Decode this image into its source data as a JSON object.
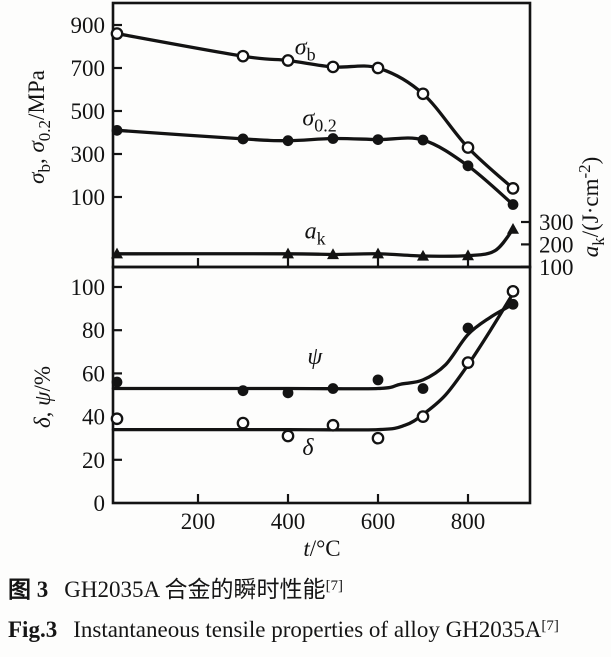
{
  "figure": {
    "captions": {
      "zh": {
        "label": "图 3",
        "text": "GH2035A 合金的瞬时性能",
        "ref": "[7]"
      },
      "en": {
        "label": "Fig.3",
        "text": "Instantaneous tensile properties of alloy GH2035A",
        "ref": "[7]"
      }
    }
  },
  "chart_data": {
    "type": "line",
    "title": "",
    "x_axis": {
      "label": "t/°C",
      "label_segments": [
        {
          "text": "t",
          "italic": true
        },
        {
          "text": "/°C"
        }
      ],
      "ticks": [
        200,
        400,
        600,
        800
      ],
      "range": [
        10,
        938
      ]
    },
    "panels": [
      {
        "id": "strength",
        "left_axis": {
          "label": "σb, σ0.2/MPa",
          "label_segments": [
            {
              "text": "σ",
              "italic": true
            },
            {
              "text": "b",
              "sub": true
            },
            {
              "text": ", "
            },
            {
              "text": "σ",
              "italic": true
            },
            {
              "text": "0.2",
              "sub": true
            },
            {
              "text": "/MPa"
            }
          ],
          "ticks": [
            900,
            700,
            500,
            300,
            100
          ],
          "range": [
            0,
            1000
          ]
        },
        "right_axis": {
          "label": "ak/(J·cm-2)",
          "label_segments": [
            {
              "text": "a",
              "italic": true
            },
            {
              "text": "k",
              "sub": true
            },
            {
              "text": "/(J·cm"
            },
            {
              "text": "-2",
              "sup": true
            },
            {
              "text": ")"
            }
          ],
          "ticks": [
            300,
            200,
            100
          ],
          "range": [
            0,
            400
          ]
        },
        "series": [
          {
            "id": "sigma-b",
            "name": "σb",
            "axis": "left",
            "marker": "circle-open",
            "label_segments": [
              {
                "text": "σ",
                "italic": true
              },
              {
                "text": "b",
                "sub": true
              }
            ],
            "label_pos": [
              415,
              800
            ],
            "points": [
              [
                20,
                860
              ],
              [
                300,
                755
              ],
              [
                400,
                735
              ],
              [
                500,
                705
              ],
              [
                600,
                700
              ],
              [
                700,
                580
              ],
              [
                800,
                330
              ],
              [
                900,
                140
              ]
            ]
          },
          {
            "id": "sigma-0-2",
            "name": "σ0.2",
            "axis": "left",
            "marker": "circle-filled",
            "label_segments": [
              {
                "text": "σ",
                "italic": true
              },
              {
                "text": "0.2",
                "sub": true
              }
            ],
            "label_pos": [
              432,
              470
            ],
            "points": [
              [
                20,
                410
              ],
              [
                300,
                370
              ],
              [
                400,
                362
              ],
              [
                500,
                372
              ],
              [
                600,
                367
              ],
              [
                700,
                365
              ],
              [
                800,
                245
              ],
              [
                900,
                65
              ]
            ]
          },
          {
            "id": "a-k",
            "name": "ak",
            "axis": "right",
            "marker": "triangle-filled",
            "label_segments": [
              {
                "text": "a",
                "italic": true
              },
              {
                "text": "k",
                "sub": true
              }
            ],
            "label_pos": [
              437,
              262
            ],
            "points": [
              [
                20,
                158
              ],
              [
                400,
                158
              ],
              [
                500,
                155
              ],
              [
                600,
                158
              ],
              [
                700,
                148
              ],
              [
                800,
                150
              ],
              [
                900,
                268
              ]
            ],
            "curve": [
              [
                20,
                158
              ],
              [
                400,
                158
              ],
              [
                500,
                155
              ],
              [
                600,
                158
              ],
              [
                700,
                148
              ],
              [
                800,
                150
              ],
              [
                860,
                172
              ],
              [
                900,
                268
              ]
            ]
          }
        ]
      },
      {
        "id": "ductility",
        "left_axis": {
          "label": "δ, ψ/%",
          "label_segments": [
            {
              "text": "δ",
              "italic": true
            },
            {
              "text": ", "
            },
            {
              "text": "ψ",
              "italic": true
            },
            {
              "text": "/%"
            }
          ],
          "ticks": [
            100,
            80,
            60,
            40,
            20,
            0
          ],
          "range": [
            0,
            109
          ]
        },
        "series": [
          {
            "id": "psi",
            "name": "ψ",
            "axis": "left",
            "marker": "circle-filled",
            "label_segments": [
              {
                "text": "ψ",
                "italic": true
              }
            ],
            "label_pos": [
              443,
              68
            ],
            "points": [
              [
                20,
                56
              ],
              [
                300,
                52
              ],
              [
                400,
                51
              ],
              [
                500,
                53
              ],
              [
                600,
                57
              ],
              [
                700,
                53
              ],
              [
                800,
                81
              ],
              [
                900,
                92
              ]
            ],
            "curve": [
              [
                12,
                53
              ],
              [
                400,
                53
              ],
              [
                600,
                53
              ],
              [
                650,
                55
              ],
              [
                700,
                57
              ],
              [
                750,
                64
              ],
              [
                800,
                78
              ],
              [
                850,
                86
              ],
              [
                900,
                92
              ]
            ]
          },
          {
            "id": "delta",
            "name": "δ",
            "axis": "left",
            "marker": "circle-open",
            "label_segments": [
              {
                "text": "δ",
                "italic": true
              }
            ],
            "label_pos": [
              432,
              26
            ],
            "points": [
              [
                20,
                39
              ],
              [
                300,
                37
              ],
              [
                400,
                31
              ],
              [
                500,
                36
              ],
              [
                600,
                30
              ],
              [
                700,
                40
              ],
              [
                800,
                65
              ],
              [
                900,
                98
              ]
            ],
            "curve": [
              [
                12,
                34
              ],
              [
                400,
                34
              ],
              [
                600,
                34
              ],
              [
                660,
                36
              ],
              [
                700,
                41
              ],
              [
                750,
                50
              ],
              [
                800,
                64
              ],
              [
                850,
                80
              ],
              [
                900,
                97
              ]
            ]
          }
        ]
      }
    ]
  }
}
